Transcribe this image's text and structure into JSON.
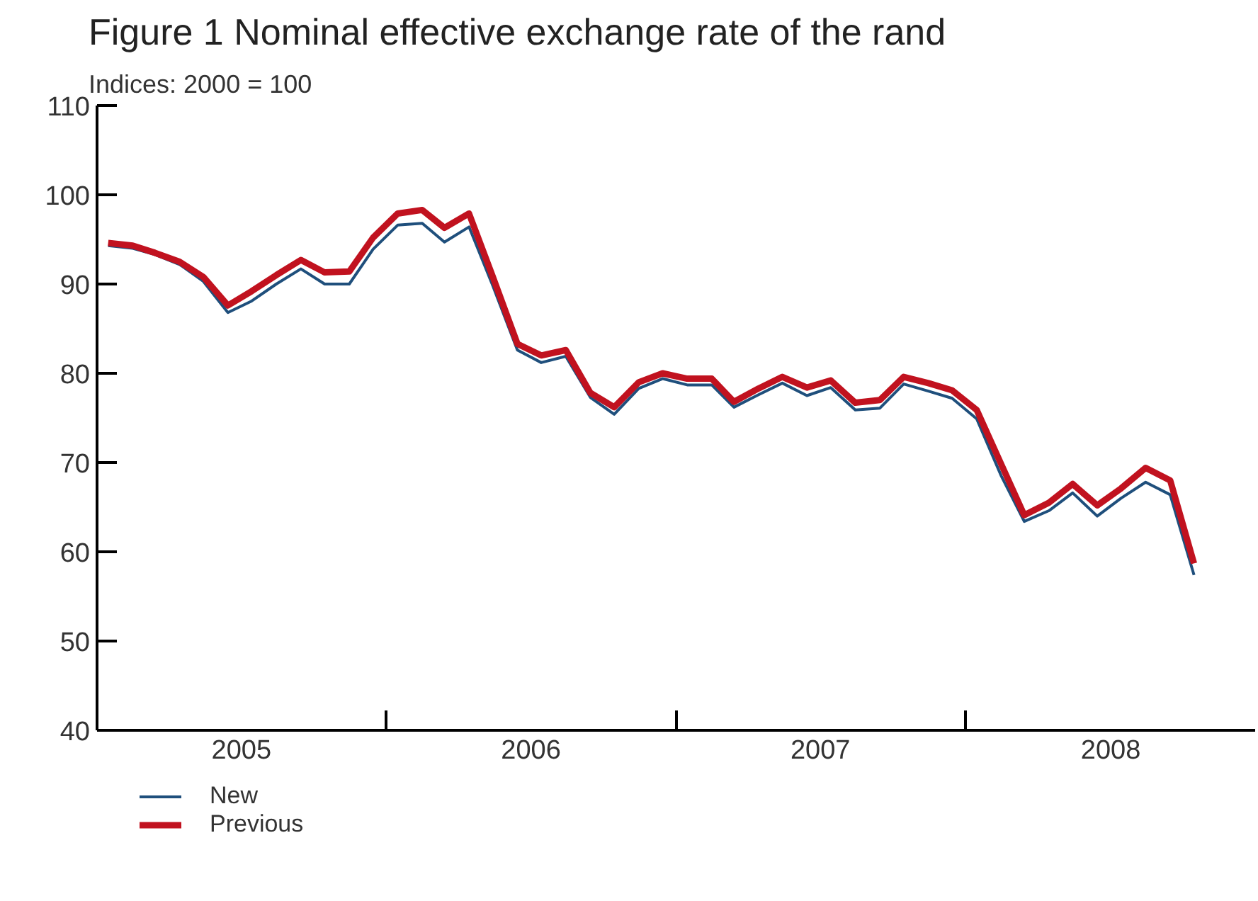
{
  "chart_data": {
    "type": "line",
    "title": "Figure 1      Nominal effective exchange rate of the rand",
    "subtitle": "Indices: 2000 = 100",
    "x": [
      "2005-01-15",
      "2005-02-15",
      "2005-03-15",
      "2005-04-15",
      "2005-05-15",
      "2005-06-15",
      "2005-07-15",
      "2005-08-15",
      "2005-09-15",
      "2005-10-15",
      "2005-11-15",
      "2005-12-15",
      "2006-01-15",
      "2006-02-15",
      "2006-03-15",
      "2006-04-15",
      "2006-05-15",
      "2006-06-15",
      "2006-07-15",
      "2006-08-15",
      "2006-09-15",
      "2006-10-15",
      "2006-11-15",
      "2006-12-15",
      "2007-01-15",
      "2007-02-15",
      "2007-03-15",
      "2007-04-15",
      "2007-05-15",
      "2007-06-15",
      "2007-07-15",
      "2007-08-15",
      "2007-09-15",
      "2007-10-15",
      "2007-11-15",
      "2007-12-15",
      "2008-01-15",
      "2008-02-15",
      "2008-03-15",
      "2008-04-15",
      "2008-05-15",
      "2008-06-15",
      "2008-07-15",
      "2008-08-15",
      "2008-09-15",
      "2008-10-15"
    ],
    "series": [
      {
        "name": "New",
        "color": "#1f4f7c",
        "values": [
          94.3,
          94.0,
          93.3,
          92.2,
          90.3,
          86.8,
          88.1,
          90.0,
          91.7,
          90.0,
          90.0,
          93.9,
          96.6,
          96.8,
          94.7,
          96.4,
          89.8,
          82.6,
          81.2,
          81.9,
          77.3,
          75.4,
          78.3,
          79.4,
          78.7,
          78.7,
          76.2,
          77.6,
          78.9,
          77.5,
          78.4,
          75.9,
          76.1,
          78.8,
          78.0,
          77.2,
          74.9,
          68.5,
          63.4,
          64.6,
          66.6,
          64.0,
          66.0,
          67.8,
          66.4,
          57.4
        ]
      },
      {
        "name": "Previous",
        "color": "#c1121f",
        "values": [
          94.6,
          94.3,
          93.5,
          92.5,
          90.8,
          87.6,
          89.2,
          91.0,
          92.7,
          91.3,
          91.4,
          95.2,
          97.9,
          98.3,
          96.3,
          97.9,
          90.8,
          83.3,
          82.0,
          82.6,
          77.8,
          76.2,
          79.0,
          80.0,
          79.4,
          79.4,
          76.8,
          78.3,
          79.6,
          78.4,
          79.2,
          76.7,
          77.0,
          79.6,
          78.9,
          78.1,
          75.9,
          69.8,
          64.1,
          65.5,
          67.6,
          65.2,
          67.1,
          69.4,
          68.0,
          58.7
        ]
      }
    ],
    "xlim": [
      "2005-01-01",
      "2009-01-01"
    ],
    "xticks": [
      {
        "value": "2006-01-01",
        "label": null
      },
      {
        "value": "2007-01-01",
        "label": null
      },
      {
        "value": "2008-01-01",
        "label": null
      },
      {
        "value": "2005-07-02",
        "label": "2005"
      },
      {
        "value": "2006-07-02",
        "label": "2006"
      },
      {
        "value": "2007-07-02",
        "label": "2007"
      },
      {
        "value": "2008-07-02",
        "label": "2008"
      }
    ],
    "ylim": [
      40,
      110
    ],
    "yticks": [
      40,
      50,
      60,
      70,
      80,
      90,
      100,
      110
    ],
    "grid": false,
    "legend": "bottom",
    "marker": "none",
    "line_style": "solid"
  }
}
